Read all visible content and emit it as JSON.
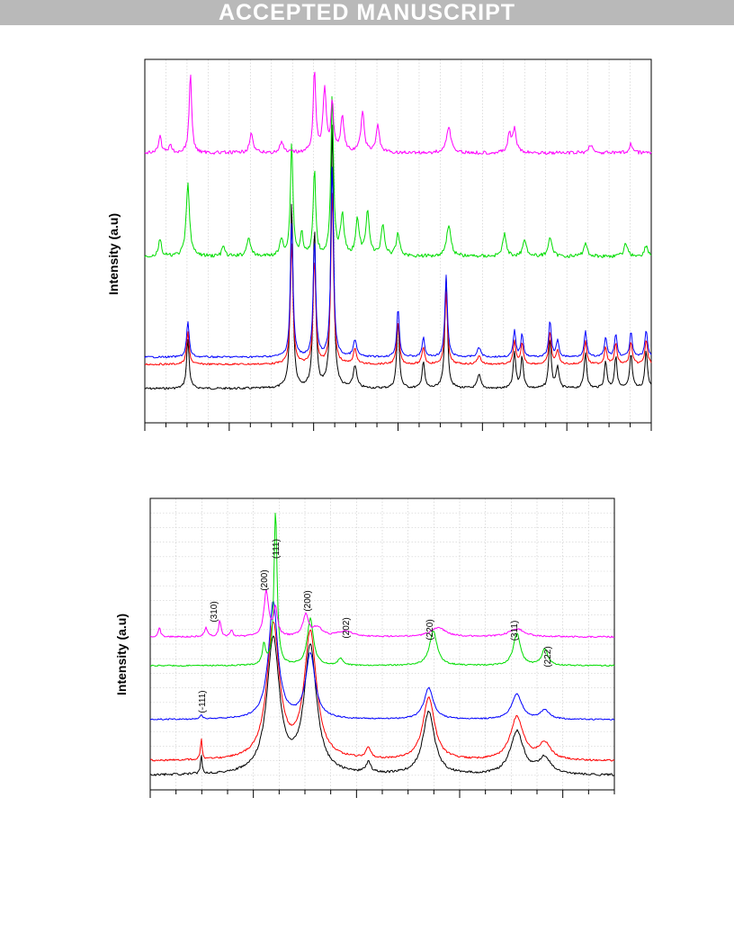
{
  "header": {
    "banner": "ACCEPTED MANUSCRIPT"
  },
  "figure_top": {
    "ylabel": "Intensity (a.u)"
  },
  "figure_bottom": {
    "ylabel": "Intensity (a.u)",
    "peak_labels": [
      "(-111)",
      "(310)",
      "(200)",
      "(111)",
      "(200)",
      "(202)",
      "(220)",
      "(311)",
      "(222)"
    ]
  },
  "colors": {
    "black": "#000000",
    "red": "#ff0000",
    "blue": "#0000ff",
    "green": "#00dd00",
    "magenta": "#ff00ff"
  },
  "chart_data": [
    {
      "type": "line",
      "title": "",
      "xlabel": "",
      "ylabel": "Intensity (a.u)",
      "grid": true,
      "series": [
        {
          "color": "#000000"
        },
        {
          "color": "#ff0000"
        },
        {
          "color": "#0000ff"
        },
        {
          "color": "#00dd00"
        },
        {
          "color": "#ff00ff"
        }
      ]
    },
    {
      "type": "line",
      "title": "",
      "xlabel": "",
      "ylabel": "Intensity (a.u)",
      "grid": true,
      "annotations": [
        "(-111)",
        "(310)",
        "(200)",
        "(111)",
        "(200)",
        "(202)",
        "(220)",
        "(311)",
        "(222)"
      ],
      "series": [
        {
          "color": "#000000"
        },
        {
          "color": "#ff0000"
        },
        {
          "color": "#0000ff"
        },
        {
          "color": "#00dd00"
        },
        {
          "color": "#ff00ff"
        }
      ]
    }
  ]
}
